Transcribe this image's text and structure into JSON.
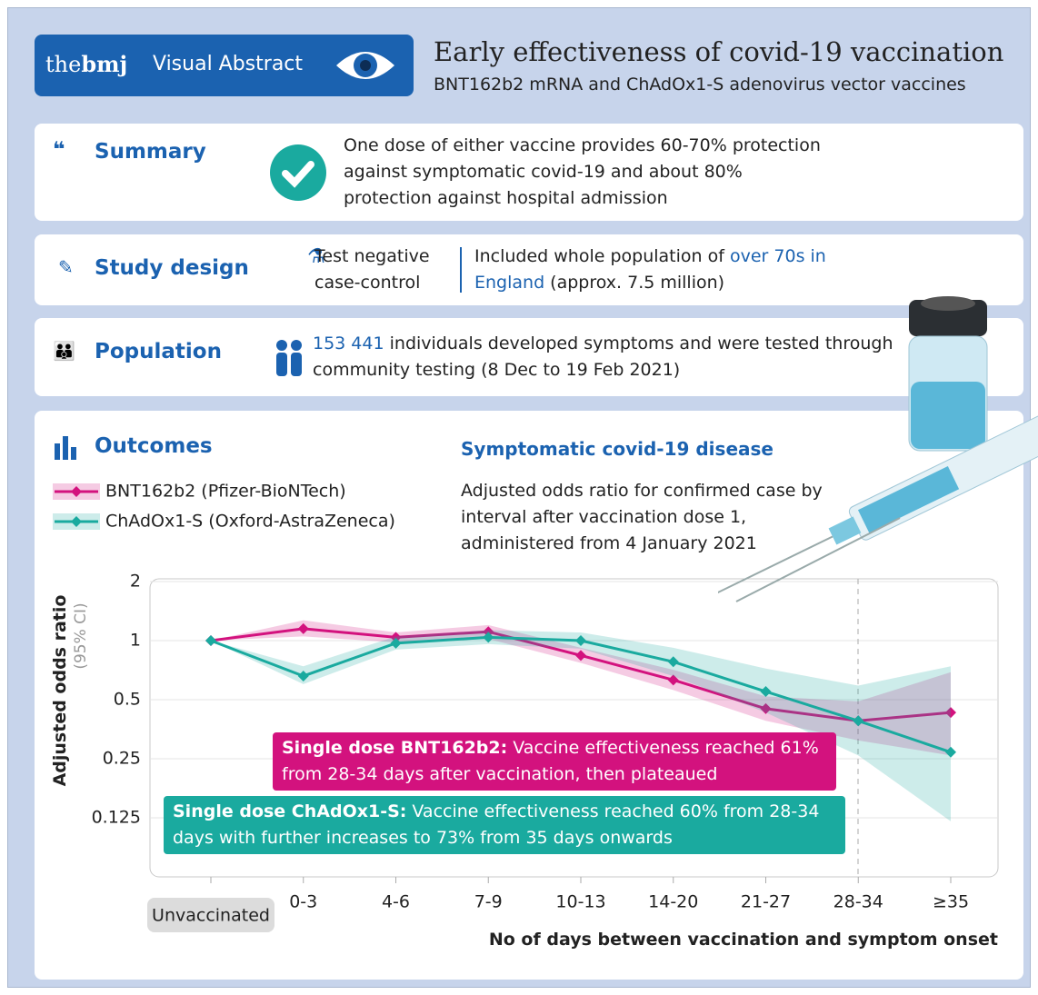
{
  "header": {
    "brand_the": "the",
    "brand_bmj": "bmj",
    "brand_label": "Visual Abstract",
    "title": "Early effectiveness of covid-19 vaccination",
    "subtitle": "BNT162b2 mRNA and ChAdOx1-S adenovirus vector vaccines"
  },
  "summary": {
    "heading": "Summary",
    "text": "One dose of either vaccine provides 60-70% protection against symptomatic covid-19 and about 80% protection against hospital admission"
  },
  "study_design": {
    "heading": "Study design",
    "method": "Test negative case-control",
    "text_before": "Included whole population of ",
    "highlight": "over 70s in England",
    "text_after": " (approx. 7.5 million)"
  },
  "population": {
    "heading": "Population",
    "highlight": "153 441",
    "text": " individuals developed symptoms and were tested through community testing (8 Dec to 19 Feb 2021)"
  },
  "outcomes": {
    "heading": "Outcomes"
  },
  "chart_data": {
    "type": "line",
    "title": "Symptomatic covid-19 disease",
    "subtitle": "Adjusted odds ratio for confirmed case by interval after vaccination dose 1, administered from 4 January 2021",
    "ylabel": "Adjusted odds ratio",
    "ylabel_note": "(95% CI)",
    "xlabel": "No of days between vaccination and symptom onset",
    "categories": [
      "Unvaccinated",
      "0-3",
      "4-6",
      "7-9",
      "10-13",
      "14-20",
      "21-27",
      "28-34",
      "≥35"
    ],
    "log_scale": true,
    "grid": true,
    "ylim": [
      0.0625,
      2
    ],
    "yticks": [
      0.125,
      0.25,
      0.5,
      1,
      2
    ],
    "series": [
      {
        "name": "BNT162b2 (Pfizer-BioNTech)",
        "color": "#d3127e",
        "values": [
          1,
          1.15,
          1.04,
          1.11,
          0.84,
          0.63,
          0.45,
          0.39,
          0.43
        ],
        "lower": [
          1,
          1.05,
          0.98,
          1.02,
          0.77,
          0.56,
          0.39,
          0.31,
          0.26
        ],
        "upper": [
          1,
          1.27,
          1.1,
          1.2,
          0.92,
          0.71,
          0.52,
          0.49,
          0.69
        ]
      },
      {
        "name": "ChAdOx1-S (Oxford-AstraZeneca)",
        "color": "#1aaa9f",
        "values": [
          1,
          0.66,
          0.97,
          1.04,
          1,
          0.78,
          0.55,
          0.39,
          0.27
        ],
        "lower": [
          1,
          0.6,
          0.9,
          0.96,
          0.91,
          0.66,
          0.43,
          0.26,
          0.12
        ],
        "upper": [
          1,
          0.74,
          1.05,
          1.13,
          1.1,
          0.92,
          0.72,
          0.59,
          0.74
        ]
      }
    ],
    "annotations": [
      {
        "bold": "Single dose BNT162b2:",
        "text": " Vaccine effectiveness reached 61% from 28-34 days after vaccination, then plateaued",
        "color": "#d3127e"
      },
      {
        "bold": "Single dose ChAdOx1-S:",
        "text": " Vaccine effectiveness reached 60% from 28-34 days with further increases to 73% from 35 days onwards",
        "color": "#1aaa9f"
      }
    ]
  }
}
